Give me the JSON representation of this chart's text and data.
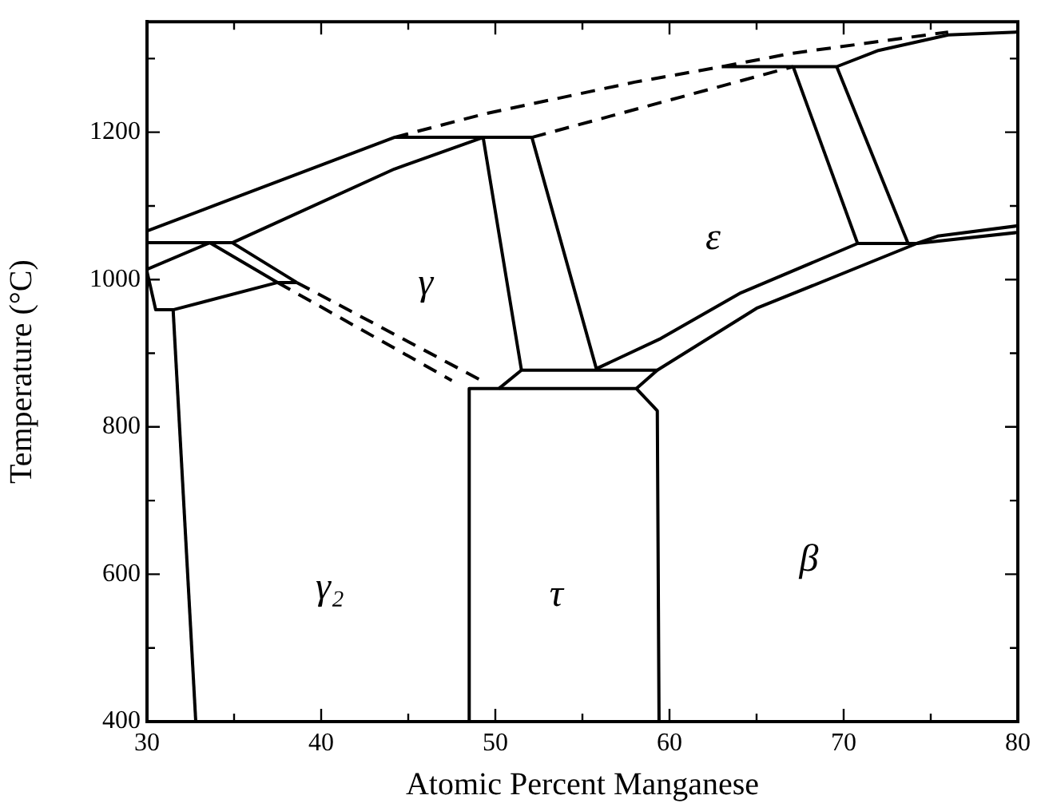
{
  "chart_data": {
    "type": "line",
    "xlabel": "Atomic Percent Manganese",
    "ylabel": "Temperature (°C)",
    "xlim": [
      30,
      80
    ],
    "xticks": [
      30,
      {
        "value": 35,
        "label": null
      },
      40,
      {
        "value": 45,
        "label": null
      },
      50,
      {
        "value": 55,
        "label": null
      },
      60,
      {
        "value": 65,
        "label": null
      },
      70,
      {
        "value": 75,
        "label": null
      },
      80
    ],
    "ylim": [
      400,
      1350
    ],
    "yticks": [
      400,
      {
        "value": 500,
        "label": null
      },
      600,
      {
        "value": 700,
        "label": null
      },
      800,
      {
        "value": 900,
        "label": null
      },
      1000,
      {
        "value": 1100,
        "label": null
      },
      1200,
      {
        "value": 1300,
        "label": null
      }
    ],
    "grid": false,
    "legend": false,
    "marker": "none",
    "line_style": "solid",
    "series": [
      {
        "color": "#000000",
        "x": [
          30,
          44.2,
          52.1,
          55.8,
          59.5,
          64.1,
          70.8,
          74.2,
          75.4,
          80
        ],
        "values": [
          1066,
          1193,
          1193,
          879,
          920,
          982,
          1049,
          1049,
          1059,
          1073
        ]
      },
      {
        "color": "#000000",
        "x": [
          34.9,
          44.2,
          49.3,
          51.5
        ],
        "values": [
          1050,
          1150,
          1193,
          877
        ]
      },
      {
        "color": "#000000",
        "x": [
          30,
          34.9,
          38.6
        ],
        "values": [
          1050,
          1050,
          996
        ]
      },
      {
        "color": "#000000",
        "x": [
          30,
          33.6,
          37.5
        ],
        "values": [
          1014,
          1050,
          996
        ]
      },
      {
        "color": "#000000",
        "x": [
          30,
          30.5,
          31.5,
          37.5,
          38.6
        ],
        "values": [
          1011,
          959,
          959,
          996,
          996
        ]
      },
      {
        "color": "#000000",
        "x": [
          31.5,
          32.8
        ],
        "values": [
          959,
          400
        ]
      },
      {
        "color": "#000000",
        "line_style": "dashed",
        "x": [
          37.5,
          47.5
        ],
        "values": [
          996,
          863
        ]
      },
      {
        "color": "#000000",
        "line_style": "dashed",
        "x": [
          38.6,
          49.2
        ],
        "values": [
          996,
          863
        ]
      },
      {
        "color": "#000000",
        "x": [
          48.5,
          48.5,
          58.1,
          59.3,
          59.4
        ],
        "values": [
          400,
          852,
          852,
          822,
          400
        ]
      },
      {
        "color": "#000000",
        "x": [
          50.2,
          51.5,
          59.3,
          58.1
        ],
        "values": [
          852,
          877,
          877,
          852
        ]
      },
      {
        "color": "#000000",
        "x": [
          59.3,
          65,
          74.2,
          80
        ],
        "values": [
          877,
          961,
          1049,
          1064
        ]
      },
      {
        "color": "#000000",
        "x": [
          67.1,
          70.8
        ],
        "values": [
          1289,
          1049
        ]
      },
      {
        "color": "#000000",
        "x": [
          69.6,
          73.7
        ],
        "values": [
          1289,
          1049
        ]
      },
      {
        "color": "#000000",
        "x": [
          63,
          69.6,
          72,
          76,
          80
        ],
        "values": [
          1289,
          1289,
          1311,
          1332,
          1336
        ]
      },
      {
        "color": "#000000",
        "line_style": "dashed",
        "x": [
          44.2,
          49.4,
          58,
          63,
          67,
          76
        ],
        "values": [
          1193,
          1225,
          1268,
          1289,
          1307,
          1336
        ]
      },
      {
        "color": "#000000",
        "line_style": "dashed",
        "x": [
          52.1,
          67.1
        ],
        "values": [
          1193,
          1289
        ]
      }
    ],
    "annotations": [
      "γ",
      "ε",
      "γ₂",
      "τ",
      "β"
    ]
  }
}
